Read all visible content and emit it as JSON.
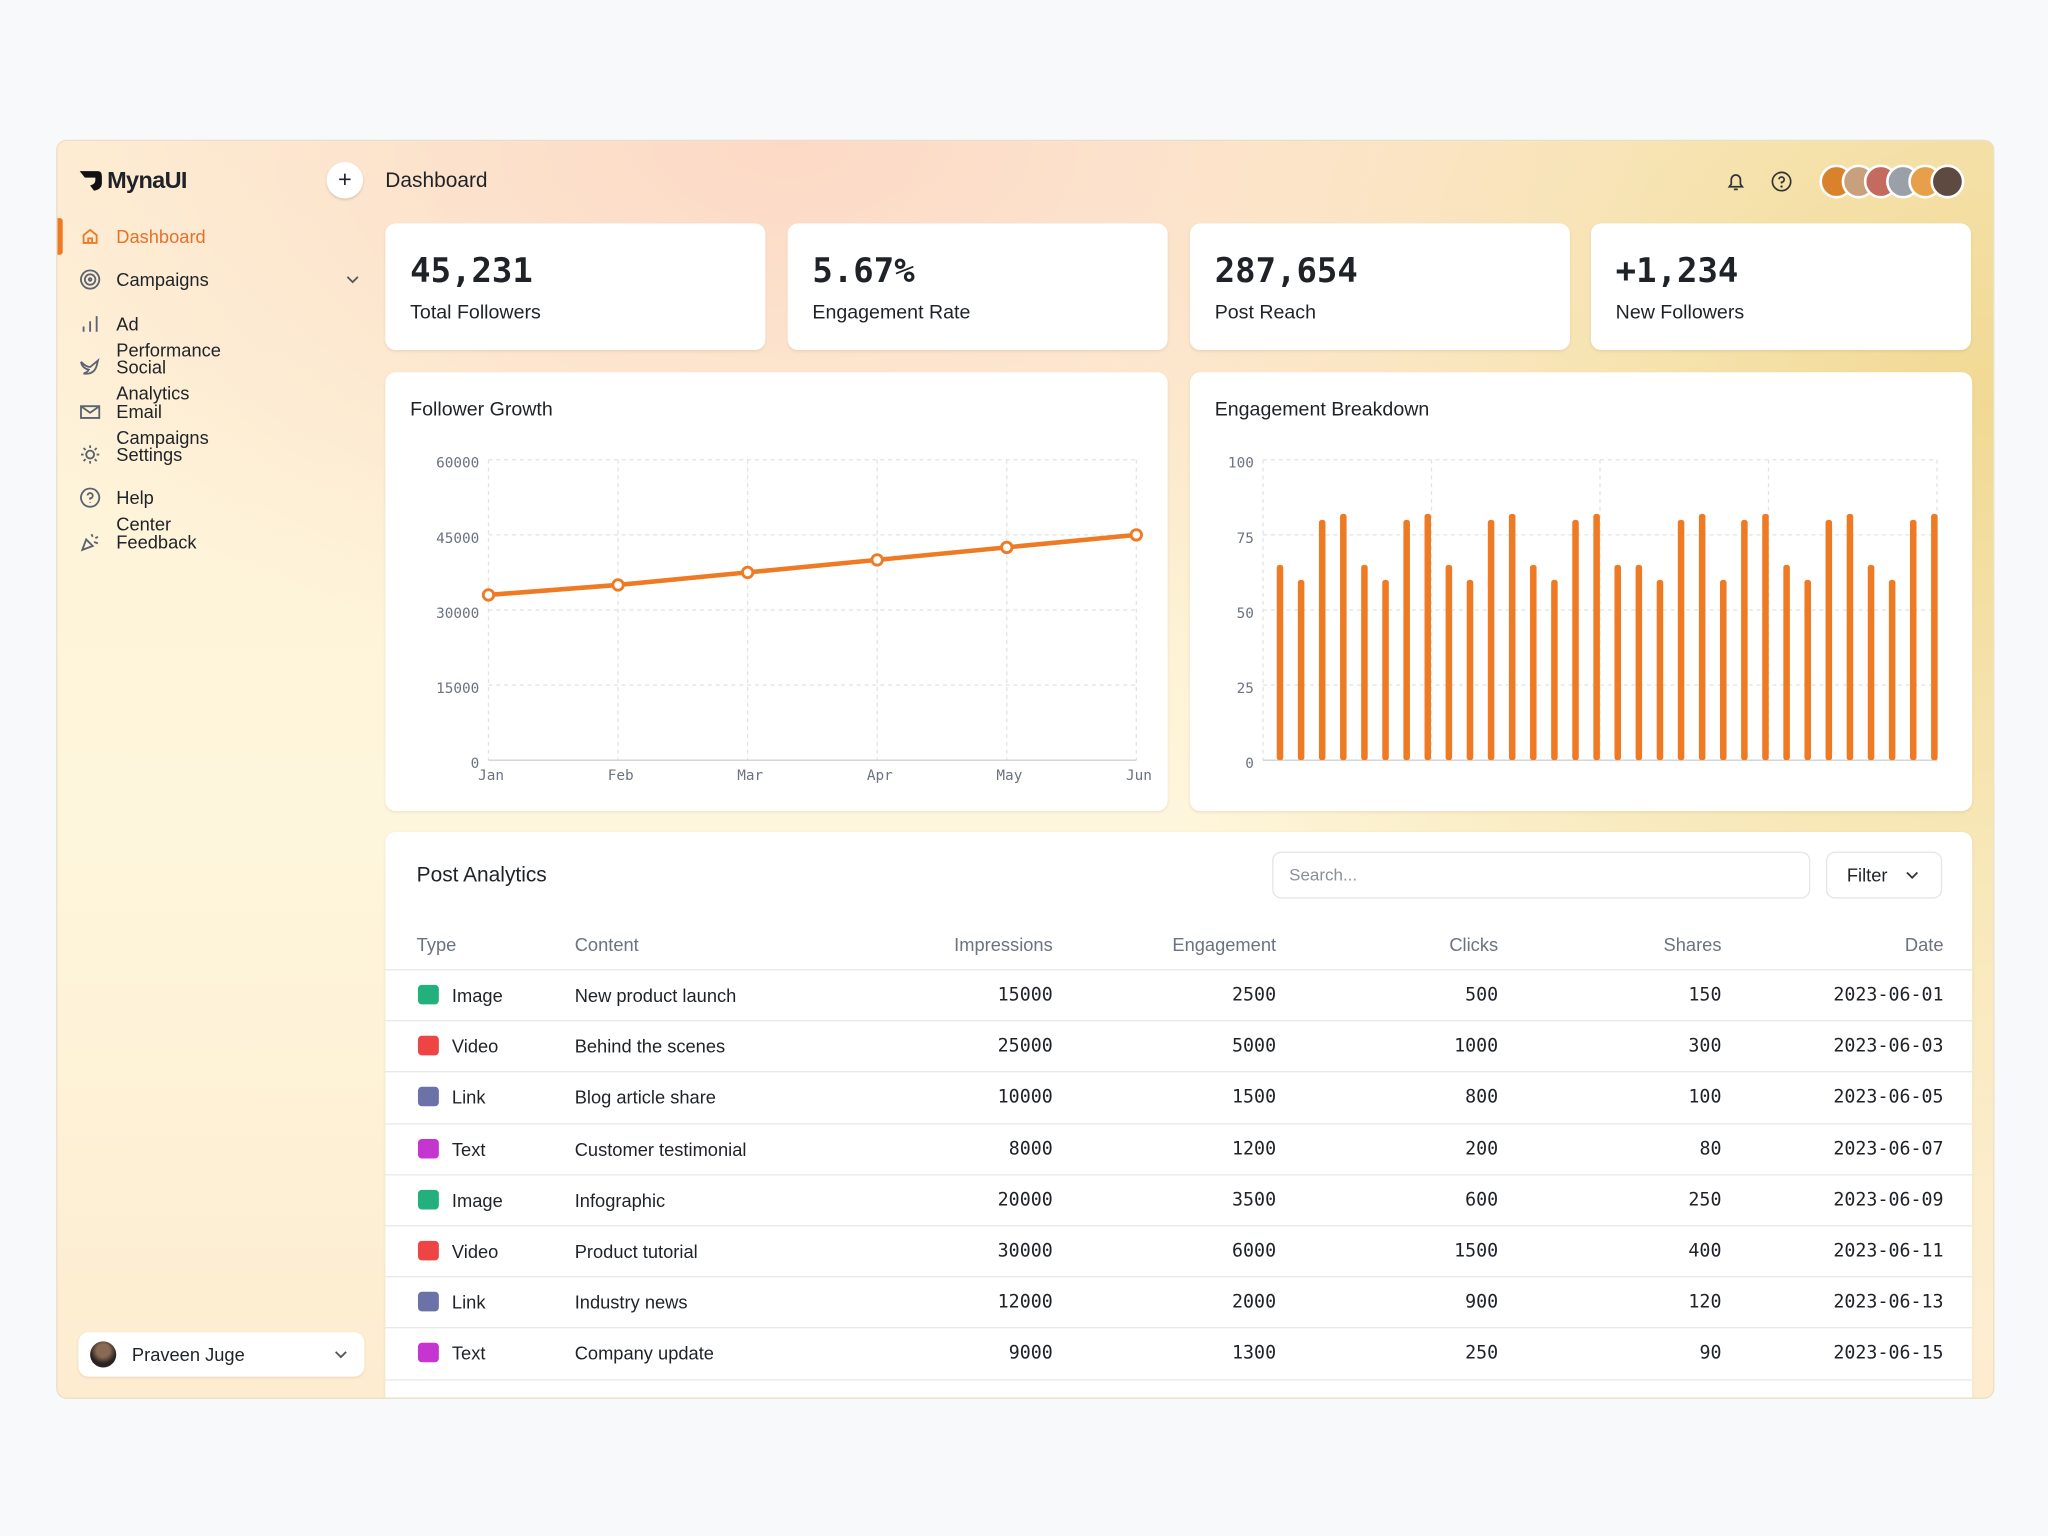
{
  "sidebar": {
    "brand": "MynaUI",
    "nav": [
      "Dashboard",
      "Campaigns",
      "Ad Performance",
      "Social Analytics",
      "Email Campaigns",
      "Settings",
      "Help Center",
      "Feedback"
    ],
    "user": "Praveen Juge"
  },
  "header": {
    "add": "+",
    "title": "Dashboard"
  },
  "stats": [
    {
      "value": "45,231",
      "label": "Total Followers"
    },
    {
      "value": "5.67%",
      "label": "Engagement Rate"
    },
    {
      "value": "287,654",
      "label": "Post Reach"
    },
    {
      "value": "+1,234",
      "label": "New Followers"
    }
  ],
  "chart_data": [
    {
      "type": "line",
      "title": "Follower Growth",
      "categories": [
        "Jan",
        "Feb",
        "Mar",
        "Apr",
        "May",
        "Jun"
      ],
      "values": [
        33000,
        35000,
        37500,
        40000,
        42500,
        45000
      ],
      "color": "#ef7a24",
      "ylim": [
        0,
        60000
      ],
      "yticks": [
        0,
        15000,
        30000,
        45000,
        60000
      ],
      "grid": true
    },
    {
      "type": "bar",
      "title": "Engagement Breakdown",
      "values": [
        65,
        60,
        80,
        82,
        65,
        60,
        80,
        82,
        65,
        60,
        80,
        82,
        65,
        60,
        80,
        82,
        65,
        65,
        60,
        80,
        82,
        60,
        80,
        82,
        65,
        60,
        80,
        82,
        65,
        60,
        80,
        82
      ],
      "color": "#ef7a24",
      "ylim": [
        0,
        100
      ],
      "yticks": [
        0,
        25,
        50,
        75,
        100
      ],
      "grid": true
    }
  ],
  "table": {
    "title": "Post Analytics",
    "search_placeholder": "Search...",
    "filter": "Filter",
    "columns": [
      "Type",
      "Content",
      "Impressions",
      "Engagement",
      "Clicks",
      "Shares",
      "Date"
    ],
    "rows": [
      [
        "Image",
        "New product launch",
        "15000",
        "2500",
        "500",
        "150",
        "2023-06-01"
      ],
      [
        "Video",
        "Behind the scenes",
        "25000",
        "5000",
        "1000",
        "300",
        "2023-06-03"
      ],
      [
        "Link",
        "Blog article share",
        "10000",
        "1500",
        "800",
        "100",
        "2023-06-05"
      ],
      [
        "Text",
        "Customer testimonial",
        "8000",
        "1200",
        "200",
        "80",
        "2023-06-07"
      ],
      [
        "Image",
        "Infographic",
        "20000",
        "3500",
        "600",
        "250",
        "2023-06-09"
      ],
      [
        "Video",
        "Product tutorial",
        "30000",
        "6000",
        "1500",
        "400",
        "2023-06-11"
      ],
      [
        "Link",
        "Industry news",
        "12000",
        "2000",
        "900",
        "120",
        "2023-06-13"
      ],
      [
        "Text",
        "Company update",
        "9000",
        "1300",
        "250",
        "90",
        "2023-06-15"
      ]
    ]
  }
}
